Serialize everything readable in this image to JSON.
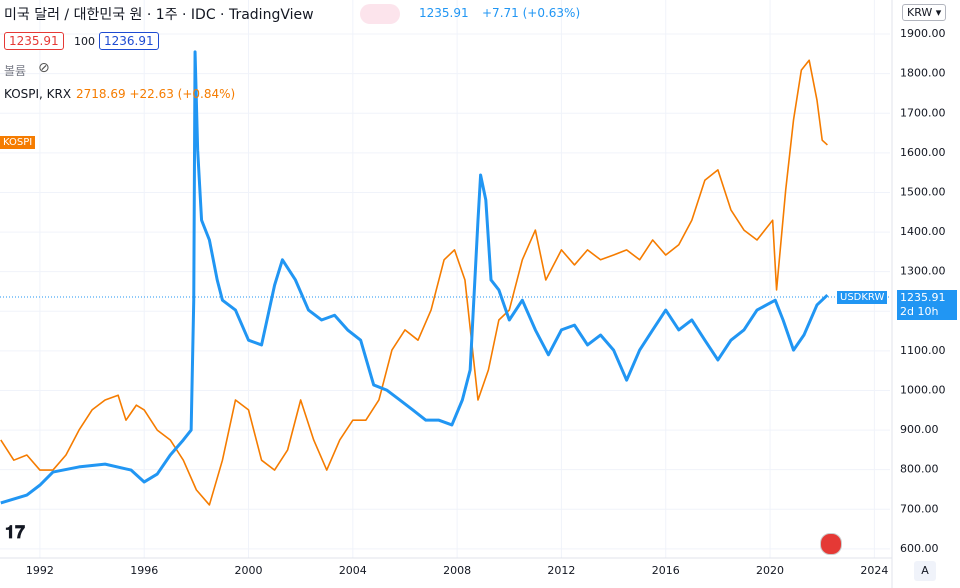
{
  "chart_data": {
    "type": "line",
    "title": "미국 달러 / 대한민국 원 · 1주 · IDC · TradingView",
    "last_price": "1235.91",
    "change": "+7.71 (+0.63%)",
    "bid": "1235.91",
    "spread": "100",
    "ask": "1236.91",
    "volume_label": "볼륨",
    "overlay_legend": "KOSPI, KRX",
    "overlay_price": "2718.69 +22.63 (+0.84%)",
    "price_tag": "1235.91",
    "countdown": "2d 10h",
    "currency": "KRW",
    "scale_mode": "A",
    "xlim": [
      1990.47,
      2024.6
    ],
    "xticks": [
      1992,
      1996,
      2000,
      2004,
      2008,
      2012,
      2016,
      2020,
      2024
    ],
    "ylim": [
      577,
      1986
    ],
    "yticks": [
      {
        "value": 600,
        "label": "600.00"
      },
      {
        "value": 700,
        "label": "700.00"
      },
      {
        "value": 800,
        "label": "800.00"
      },
      {
        "value": 900,
        "label": "900.00"
      },
      {
        "value": 1000,
        "label": "1000.00"
      },
      {
        "value": 1100,
        "label": "1100.00"
      },
      {
        "value": 1200,
        "label": "1200.00"
      },
      {
        "value": 1300,
        "label": "1300.00"
      },
      {
        "value": 1400,
        "label": "1400.00"
      },
      {
        "value": 1500,
        "label": "1500.00"
      },
      {
        "value": 1600,
        "label": "1600.00"
      },
      {
        "value": 1700,
        "label": "1700.00"
      },
      {
        "value": 1800,
        "label": "1800.00"
      },
      {
        "value": 1900,
        "label": "1900.00"
      }
    ],
    "current_value": 1235.91,
    "grid": true,
    "series": [
      {
        "name": "KOSPI",
        "color": "#f57c00",
        "x": [
          1990.5,
          1991.0,
          1991.5,
          1992.0,
          1992.5,
          1993.0,
          1993.5,
          1994.0,
          1994.5,
          1995.0,
          1995.3,
          1995.7,
          1996.0,
          1996.5,
          1997.0,
          1997.5,
          1998.0,
          1998.5,
          1999.0,
          1999.5,
          2000.0,
          2000.5,
          2001.0,
          2001.5,
          2002.0,
          2002.5,
          2003.0,
          2003.5,
          2004.0,
          2004.5,
          2005.0,
          2005.5,
          2006.0,
          2006.5,
          2007.0,
          2007.5,
          2007.9,
          2008.3,
          2008.8,
          2009.2,
          2009.6,
          2010.0,
          2010.5,
          2011.0,
          2011.4,
          2012.0,
          2012.5,
          2013.0,
          2013.5,
          2014.0,
          2014.5,
          2015.0,
          2015.5,
          2016.0,
          2016.5,
          2017.0,
          2017.5,
          2018.0,
          2018.5,
          2019.0,
          2019.5,
          2020.1,
          2020.25,
          2020.6,
          2020.9,
          2021.2,
          2021.5,
          2021.8,
          2022.0,
          2022.2
        ],
        "values": [
          875,
          824,
          837,
          799,
          799,
          837,
          900,
          951,
          976,
          988,
          925,
          963,
          951,
          900,
          875,
          824,
          749,
          711,
          824,
          976,
          951,
          824,
          799,
          850,
          976,
          875,
          799,
          875,
          925,
          925,
          976,
          1102,
          1153,
          1127,
          1203,
          1330,
          1355,
          1279,
          976,
          1052,
          1178,
          1203,
          1330,
          1405,
          1279,
          1355,
          1317,
          1355,
          1330,
          1342,
          1355,
          1330,
          1380,
          1342,
          1368,
          1430,
          1531,
          1557,
          1456,
          1405,
          1380,
          1430,
          1254,
          1506,
          1683,
          1809,
          1834,
          1733,
          1632,
          1620
        ]
      },
      {
        "name": "USDKRW",
        "color": "#2196f3",
        "x": [
          1990.5,
          1991.5,
          1992.0,
          1992.5,
          1993.5,
          1994.5,
          1995.5,
          1996.0,
          1996.5,
          1997.0,
          1997.5,
          1997.8,
          1997.9,
          1997.95,
          1998.05,
          1998.2,
          1998.5,
          1998.8,
          1999.0,
          1999.5,
          2000.0,
          2000.5,
          2001.0,
          2001.3,
          2001.8,
          2002.3,
          2002.8,
          2003.3,
          2003.8,
          2004.3,
          2004.8,
          2005.3,
          2005.8,
          2006.3,
          2006.8,
          2007.3,
          2007.8,
          2008.2,
          2008.5,
          2008.8,
          2008.9,
          2009.1,
          2009.3,
          2009.6,
          2010.0,
          2010.5,
          2011.0,
          2011.5,
          2012.0,
          2012.5,
          2013.0,
          2013.5,
          2014.0,
          2014.5,
          2015.0,
          2015.5,
          2016.0,
          2016.5,
          2017.0,
          2017.5,
          2018.0,
          2018.5,
          2019.0,
          2019.5,
          2020.2,
          2020.5,
          2020.9,
          2021.3,
          2021.8,
          2022.2
        ],
        "values": [
          716,
          736,
          761,
          794,
          807,
          814,
          799,
          769,
          789,
          837,
          875,
          900,
          1228,
          1855,
          1607,
          1430,
          1380,
          1279,
          1228,
          1203,
          1127,
          1115,
          1266,
          1330,
          1279,
          1203,
          1178,
          1190,
          1153,
          1127,
          1014,
          1001,
          976,
          951,
          925,
          925,
          913,
          976,
          1052,
          1430,
          1544,
          1481,
          1279,
          1254,
          1178,
          1228,
          1153,
          1090,
          1153,
          1165,
          1115,
          1140,
          1102,
          1026,
          1102,
          1153,
          1203,
          1153,
          1178,
          1127,
          1077,
          1127,
          1153,
          1203,
          1228,
          1178,
          1102,
          1140,
          1216,
          1241
        ]
      }
    ]
  }
}
